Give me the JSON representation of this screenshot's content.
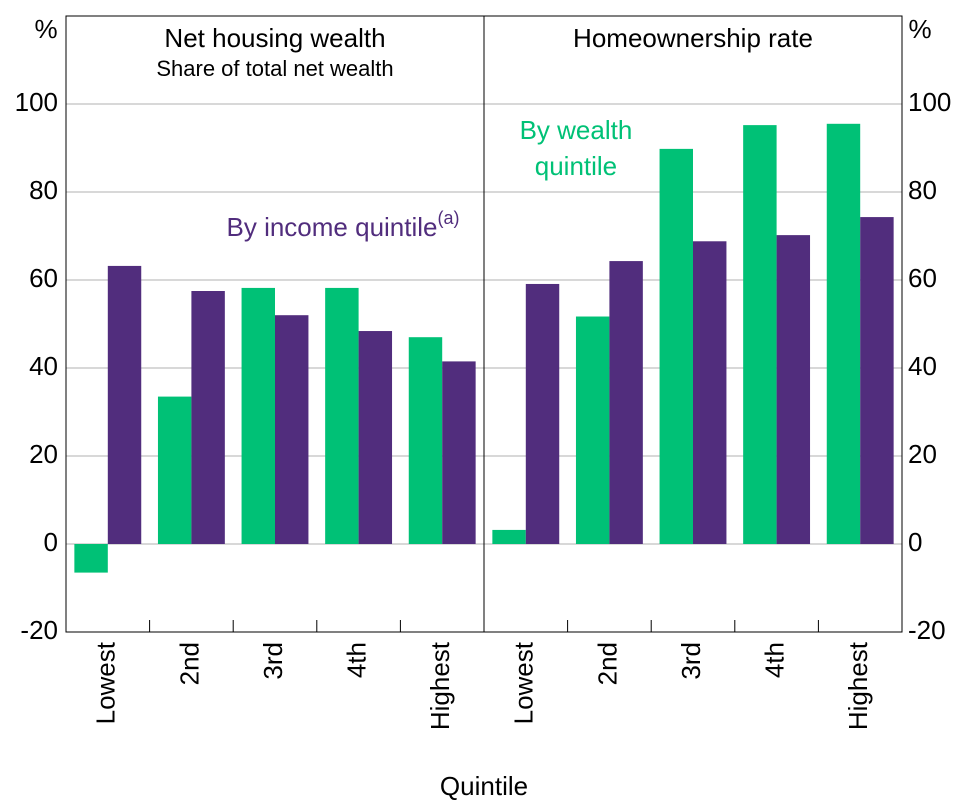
{
  "chart_data": [
    {
      "type": "bar",
      "title": "Net housing wealth",
      "subtitle": "Share of total net wealth",
      "ylabel": "%",
      "xlabel": "Quintile",
      "yaxis_side": "left",
      "categories": [
        "Lowest",
        "2nd",
        "3rd",
        "4th",
        "Highest"
      ],
      "series": [
        {
          "color": "#00c176",
          "values": [
            -6.5,
            33.5,
            58.2,
            58.2,
            47
          ]
        },
        {
          "name": "By income quintile",
          "name_note": "(a)",
          "color": "#512d7d",
          "values": [
            63.2,
            57.5,
            52,
            48.4,
            41.5
          ]
        }
      ],
      "ylim": [
        -20,
        120
      ],
      "yticks": [
        -20,
        0,
        20,
        40,
        60,
        80,
        100
      ],
      "grid": true
    },
    {
      "type": "bar",
      "title": "Homeownership rate",
      "ylabel": "%",
      "yaxis_side": "right",
      "categories": [
        "Lowest",
        "2nd",
        "3rd",
        "4th",
        "Highest"
      ],
      "series": [
        {
          "name": "By wealth quintile",
          "color": "#00c176",
          "values": [
            3.2,
            51.7,
            89.8,
            95.2,
            95.5
          ]
        },
        {
          "color": "#512d7d",
          "values": [
            59.1,
            64.3,
            68.8,
            70.2,
            74.3
          ]
        }
      ],
      "ylim": [
        -20,
        120
      ],
      "yticks": [
        -20,
        0,
        20,
        40,
        60,
        80,
        100
      ],
      "grid": true
    }
  ]
}
